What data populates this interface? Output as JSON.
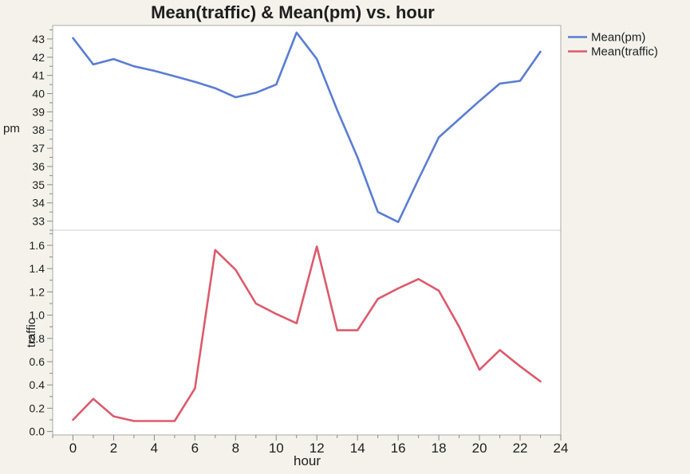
{
  "title": "Mean(traffic) & Mean(pm) vs. hour",
  "legend": {
    "items": [
      {
        "label": "Mean(pm)",
        "color": "#5A7DD1"
      },
      {
        "label": "Mean(traffic)",
        "color": "#DC5A6C"
      }
    ]
  },
  "colors": {
    "background": "#F4F2EB",
    "plot_background": "#FFFFFF",
    "border": "#A9A9A9",
    "divider": "#D8D8D8",
    "tick": "#8A8A8A",
    "text": "#1E1E1E"
  },
  "x_axis": {
    "label": "hour",
    "range": [
      -1,
      24
    ],
    "major_ticks": [
      0,
      2,
      4,
      6,
      8,
      10,
      12,
      14,
      16,
      18,
      20,
      22,
      24
    ],
    "tick_labels": [
      "0",
      "2",
      "4",
      "6",
      "8",
      "10",
      "12",
      "14",
      "16",
      "18",
      "20",
      "22",
      "24"
    ],
    "minor_step": 1
  },
  "chart_data": {
    "type": "line",
    "xlabel": "hour",
    "x": [
      0,
      1,
      2,
      3,
      4,
      5,
      6,
      7,
      8,
      9,
      10,
      11,
      12,
      13,
      14,
      15,
      16,
      17,
      18,
      19,
      20,
      21,
      22,
      23
    ],
    "panels": [
      {
        "ylabel": "pm",
        "y_range": [
          32.5,
          43.74
        ],
        "major_ticks": [
          33,
          34,
          35,
          36,
          37,
          38,
          39,
          40,
          41,
          42,
          43
        ],
        "tick_labels": [
          "33",
          "34",
          "35",
          "36",
          "37",
          "38",
          "39",
          "40",
          "41",
          "42",
          "43"
        ],
        "minor_step": 0.5
      },
      {
        "ylabel": "traffic",
        "y_range": [
          -0.03,
          1.73
        ],
        "major_ticks": [
          0.0,
          0.2,
          0.4,
          0.6,
          0.8,
          1.0,
          1.2,
          1.4,
          1.6
        ],
        "tick_labels": [
          "0.0",
          "0.2",
          "0.4",
          "0.6",
          "0.8",
          "1.0",
          "1.2",
          "1.4",
          "1.6"
        ],
        "minor_step": 0.1
      }
    ],
    "series": [
      {
        "name": "Mean(pm)",
        "panel": 0,
        "color": "#5A7DD1",
        "values": [
          43.05,
          41.6,
          41.9,
          41.5,
          41.25,
          40.95,
          40.65,
          40.3,
          39.8,
          40.05,
          40.5,
          43.35,
          41.9,
          39.1,
          36.5,
          33.5,
          32.95,
          35.3,
          37.6,
          38.6,
          39.6,
          40.55,
          40.7,
          42.3
        ]
      },
      {
        "name": "Mean(traffic)",
        "panel": 1,
        "color": "#DC5A6C",
        "values": [
          0.1,
          0.28,
          0.13,
          0.09,
          0.09,
          0.09,
          0.37,
          1.56,
          1.39,
          1.1,
          1.01,
          0.93,
          1.59,
          0.87,
          0.87,
          1.14,
          1.23,
          1.31,
          1.21,
          0.9,
          0.53,
          0.7,
          0.56,
          0.43
        ]
      }
    ]
  }
}
